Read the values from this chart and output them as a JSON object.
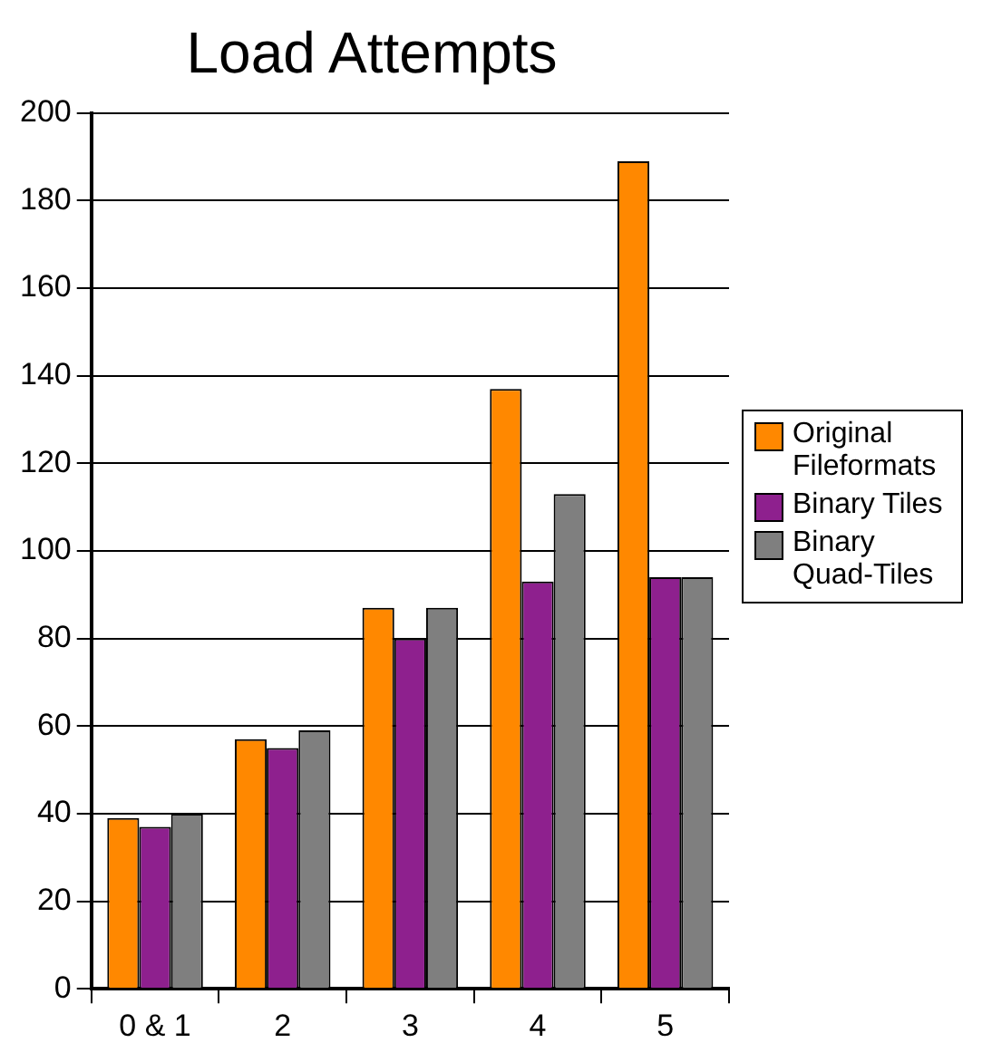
{
  "chart_data": {
    "type": "bar",
    "title": "Load Attempts",
    "categories": [
      "0 & 1",
      "2",
      "3",
      "4",
      "5"
    ],
    "series": [
      {
        "name": "Original Fileformats",
        "color": "#ff8800",
        "values": [
          39,
          57,
          87,
          137,
          189
        ]
      },
      {
        "name": "Binary Tiles",
        "color": "#8e208e",
        "values": [
          37,
          55,
          80,
          93,
          94
        ]
      },
      {
        "name": "Binary Quad-Tiles",
        "color": "#7f7f7f",
        "values": [
          40,
          59,
          87,
          113,
          94
        ]
      }
    ],
    "ylim": [
      0,
      200
    ],
    "yticks": [
      0,
      20,
      40,
      60,
      80,
      100,
      120,
      140,
      160,
      180,
      200
    ],
    "grid": "y",
    "legend": "right"
  }
}
